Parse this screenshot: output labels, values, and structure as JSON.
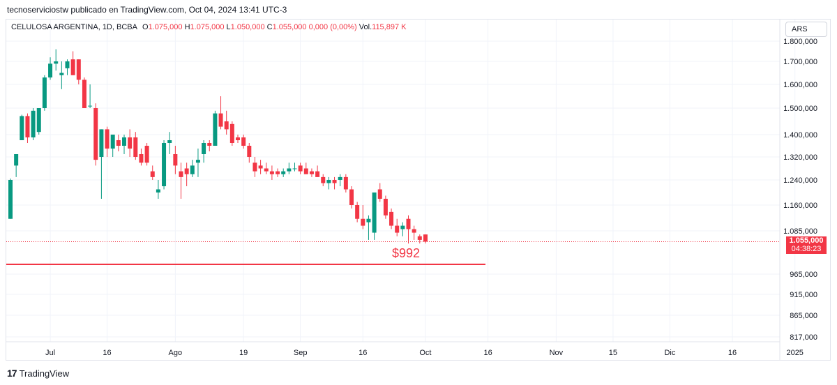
{
  "header": {
    "publisher": "tecnoserviciostw publicado en TradingView.com, Oct 04, 2024 13:41 UTC-3"
  },
  "legend": {
    "title": "CELULOSA ARGENTINA, 1D, BCBA",
    "open_label": "O",
    "open": "1.075,000",
    "high_label": "H",
    "high": "1.075,000",
    "low_label": "L",
    "low": "1.050,000",
    "close_label": "C",
    "close": "1.055,000",
    "change": "0,000 (0,00%)",
    "vol_label": "Vol.",
    "vol": "115,897 K"
  },
  "currency": "ARS",
  "price_tag": {
    "price": "1.055,000",
    "countdown": "04:38:23"
  },
  "annotation": {
    "text": "$992",
    "level": 992
  },
  "footer": {
    "brand": "TradingView",
    "logo": "17"
  },
  "colors": {
    "up": "#089981",
    "down": "#f23645",
    "grid": "#f0f3fa",
    "text": "#131722"
  },
  "chart_data": {
    "type": "candlestick",
    "y_ticks": [
      {
        "label": "1.800,000",
        "value": 1800
      },
      {
        "label": "1.700,000",
        "value": 1700
      },
      {
        "label": "1.600,000",
        "value": 1600
      },
      {
        "label": "1.500,000",
        "value": 1500
      },
      {
        "label": "1.400,000",
        "value": 1400
      },
      {
        "label": "1.320,000",
        "value": 1320
      },
      {
        "label": "1.240,000",
        "value": 1240
      },
      {
        "label": "1.160,000",
        "value": 1160
      },
      {
        "label": "1.085,000",
        "value": 1085
      },
      {
        "label": "965,000",
        "value": 965
      },
      {
        "label": "915,000",
        "value": 915
      },
      {
        "label": "865,000",
        "value": 865
      },
      {
        "label": "817,000",
        "value": 817
      }
    ],
    "x_ticks": [
      {
        "label": "Jul",
        "index": 7
      },
      {
        "label": "16",
        "index": 17
      },
      {
        "label": "Ago",
        "index": 29
      },
      {
        "label": "19",
        "index": 41
      },
      {
        "label": "Sep",
        "index": 51
      },
      {
        "label": "16",
        "index": 62
      },
      {
        "label": "Oct",
        "index": 73
      },
      {
        "label": "16",
        "index": 84
      },
      {
        "label": "Nov",
        "index": 96
      },
      {
        "label": "15",
        "index": 106
      },
      {
        "label": "Dic",
        "index": 116
      },
      {
        "label": "16",
        "index": 127
      },
      {
        "label": "2025",
        "index": 138
      }
    ],
    "last_price": 1055,
    "support_level": 992,
    "candles": [
      {
        "o": 1120,
        "h": 1245,
        "l": 1120,
        "c": 1240
      },
      {
        "o": 1290,
        "h": 1330,
        "l": 1250,
        "c": 1330
      },
      {
        "o": 1380,
        "h": 1475,
        "l": 1380,
        "c": 1470
      },
      {
        "o": 1470,
        "h": 1480,
        "l": 1370,
        "c": 1390
      },
      {
        "o": 1390,
        "h": 1500,
        "l": 1380,
        "c": 1490
      },
      {
        "o": 1410,
        "h": 1500,
        "l": 1400,
        "c": 1500
      },
      {
        "o": 1500,
        "h": 1640,
        "l": 1490,
        "c": 1630
      },
      {
        "o": 1630,
        "h": 1720,
        "l": 1620,
        "c": 1690
      },
      {
        "o": 1690,
        "h": 1760,
        "l": 1660,
        "c": 1700
      },
      {
        "o": 1640,
        "h": 1700,
        "l": 1580,
        "c": 1650
      },
      {
        "o": 1670,
        "h": 1710,
        "l": 1640,
        "c": 1700
      },
      {
        "o": 1710,
        "h": 1750,
        "l": 1640,
        "c": 1640
      },
      {
        "o": 1710,
        "h": 1710,
        "l": 1600,
        "c": 1620
      },
      {
        "o": 1620,
        "h": 1630,
        "l": 1500,
        "c": 1500
      },
      {
        "o": 1510,
        "h": 1600,
        "l": 1500,
        "c": 1510
      },
      {
        "o": 1500,
        "h": 1520,
        "l": 1290,
        "c": 1310
      },
      {
        "o": 1320,
        "h": 1420,
        "l": 1180,
        "c": 1420
      },
      {
        "o": 1420,
        "h": 1430,
        "l": 1320,
        "c": 1350
      },
      {
        "o": 1350,
        "h": 1400,
        "l": 1320,
        "c": 1400
      },
      {
        "o": 1380,
        "h": 1400,
        "l": 1340,
        "c": 1360
      },
      {
        "o": 1360,
        "h": 1400,
        "l": 1330,
        "c": 1390
      },
      {
        "o": 1390,
        "h": 1420,
        "l": 1320,
        "c": 1350
      },
      {
        "o": 1390,
        "h": 1410,
        "l": 1310,
        "c": 1320
      },
      {
        "o": 1330,
        "h": 1350,
        "l": 1290,
        "c": 1300
      },
      {
        "o": 1360,
        "h": 1370,
        "l": 1290,
        "c": 1300
      },
      {
        "o": 1270,
        "h": 1290,
        "l": 1240,
        "c": 1250
      },
      {
        "o": 1200,
        "h": 1240,
        "l": 1180,
        "c": 1210
      },
      {
        "o": 1220,
        "h": 1380,
        "l": 1210,
        "c": 1370
      },
      {
        "o": 1370,
        "h": 1410,
        "l": 1330,
        "c": 1380
      },
      {
        "o": 1330,
        "h": 1360,
        "l": 1260,
        "c": 1290
      },
      {
        "o": 1270,
        "h": 1300,
        "l": 1180,
        "c": 1250
      },
      {
        "o": 1280,
        "h": 1300,
        "l": 1220,
        "c": 1260
      },
      {
        "o": 1260,
        "h": 1310,
        "l": 1250,
        "c": 1290
      },
      {
        "o": 1300,
        "h": 1350,
        "l": 1250,
        "c": 1310
      },
      {
        "o": 1330,
        "h": 1380,
        "l": 1300,
        "c": 1370
      },
      {
        "o": 1370,
        "h": 1380,
        "l": 1340,
        "c": 1360
      },
      {
        "o": 1360,
        "h": 1490,
        "l": 1360,
        "c": 1480
      },
      {
        "o": 1480,
        "h": 1550,
        "l": 1420,
        "c": 1430
      },
      {
        "o": 1450,
        "h": 1490,
        "l": 1400,
        "c": 1420
      },
      {
        "o": 1440,
        "h": 1450,
        "l": 1360,
        "c": 1370
      },
      {
        "o": 1390,
        "h": 1400,
        "l": 1370,
        "c": 1380
      },
      {
        "o": 1390,
        "h": 1400,
        "l": 1350,
        "c": 1360
      },
      {
        "o": 1360,
        "h": 1370,
        "l": 1300,
        "c": 1320
      },
      {
        "o": 1300,
        "h": 1320,
        "l": 1250,
        "c": 1270
      },
      {
        "o": 1290,
        "h": 1310,
        "l": 1260,
        "c": 1280
      },
      {
        "o": 1280,
        "h": 1300,
        "l": 1260,
        "c": 1270
      },
      {
        "o": 1270,
        "h": 1290,
        "l": 1240,
        "c": 1260
      },
      {
        "o": 1270,
        "h": 1280,
        "l": 1250,
        "c": 1260
      },
      {
        "o": 1260,
        "h": 1280,
        "l": 1250,
        "c": 1270
      },
      {
        "o": 1270,
        "h": 1300,
        "l": 1260,
        "c": 1280
      },
      {
        "o": 1280,
        "h": 1300,
        "l": 1270,
        "c": 1280
      },
      {
        "o": 1290,
        "h": 1300,
        "l": 1260,
        "c": 1270
      },
      {
        "o": 1280,
        "h": 1300,
        "l": 1260,
        "c": 1260
      },
      {
        "o": 1270,
        "h": 1280,
        "l": 1250,
        "c": 1260
      },
      {
        "o": 1270,
        "h": 1290,
        "l": 1250,
        "c": 1250
      },
      {
        "o": 1250,
        "h": 1260,
        "l": 1220,
        "c": 1230
      },
      {
        "o": 1230,
        "h": 1250,
        "l": 1210,
        "c": 1240
      },
      {
        "o": 1240,
        "h": 1250,
        "l": 1210,
        "c": 1230
      },
      {
        "o": 1240,
        "h": 1260,
        "l": 1220,
        "c": 1250
      },
      {
        "o": 1250,
        "h": 1260,
        "l": 1200,
        "c": 1210
      },
      {
        "o": 1210,
        "h": 1220,
        "l": 1150,
        "c": 1160
      },
      {
        "o": 1160,
        "h": 1170,
        "l": 1110,
        "c": 1120
      },
      {
        "o": 1120,
        "h": 1160,
        "l": 1090,
        "c": 1100
      },
      {
        "o": 1110,
        "h": 1130,
        "l": 1060,
        "c": 1120
      },
      {
        "o": 1080,
        "h": 1200,
        "l": 1060,
        "c": 1200
      },
      {
        "o": 1210,
        "h": 1230,
        "l": 1170,
        "c": 1180
      },
      {
        "o": 1180,
        "h": 1190,
        "l": 1120,
        "c": 1130
      },
      {
        "o": 1140,
        "h": 1150,
        "l": 1090,
        "c": 1100
      },
      {
        "o": 1100,
        "h": 1120,
        "l": 1070,
        "c": 1080
      },
      {
        "o": 1090,
        "h": 1110,
        "l": 1070,
        "c": 1100
      },
      {
        "o": 1120,
        "h": 1130,
        "l": 1050,
        "c": 1090
      },
      {
        "o": 1090,
        "h": 1100,
        "l": 1060,
        "c": 1080
      },
      {
        "o": 1070,
        "h": 1075,
        "l": 1050,
        "c": 1060
      },
      {
        "o": 1075,
        "h": 1075,
        "l": 1050,
        "c": 1055
      }
    ]
  }
}
